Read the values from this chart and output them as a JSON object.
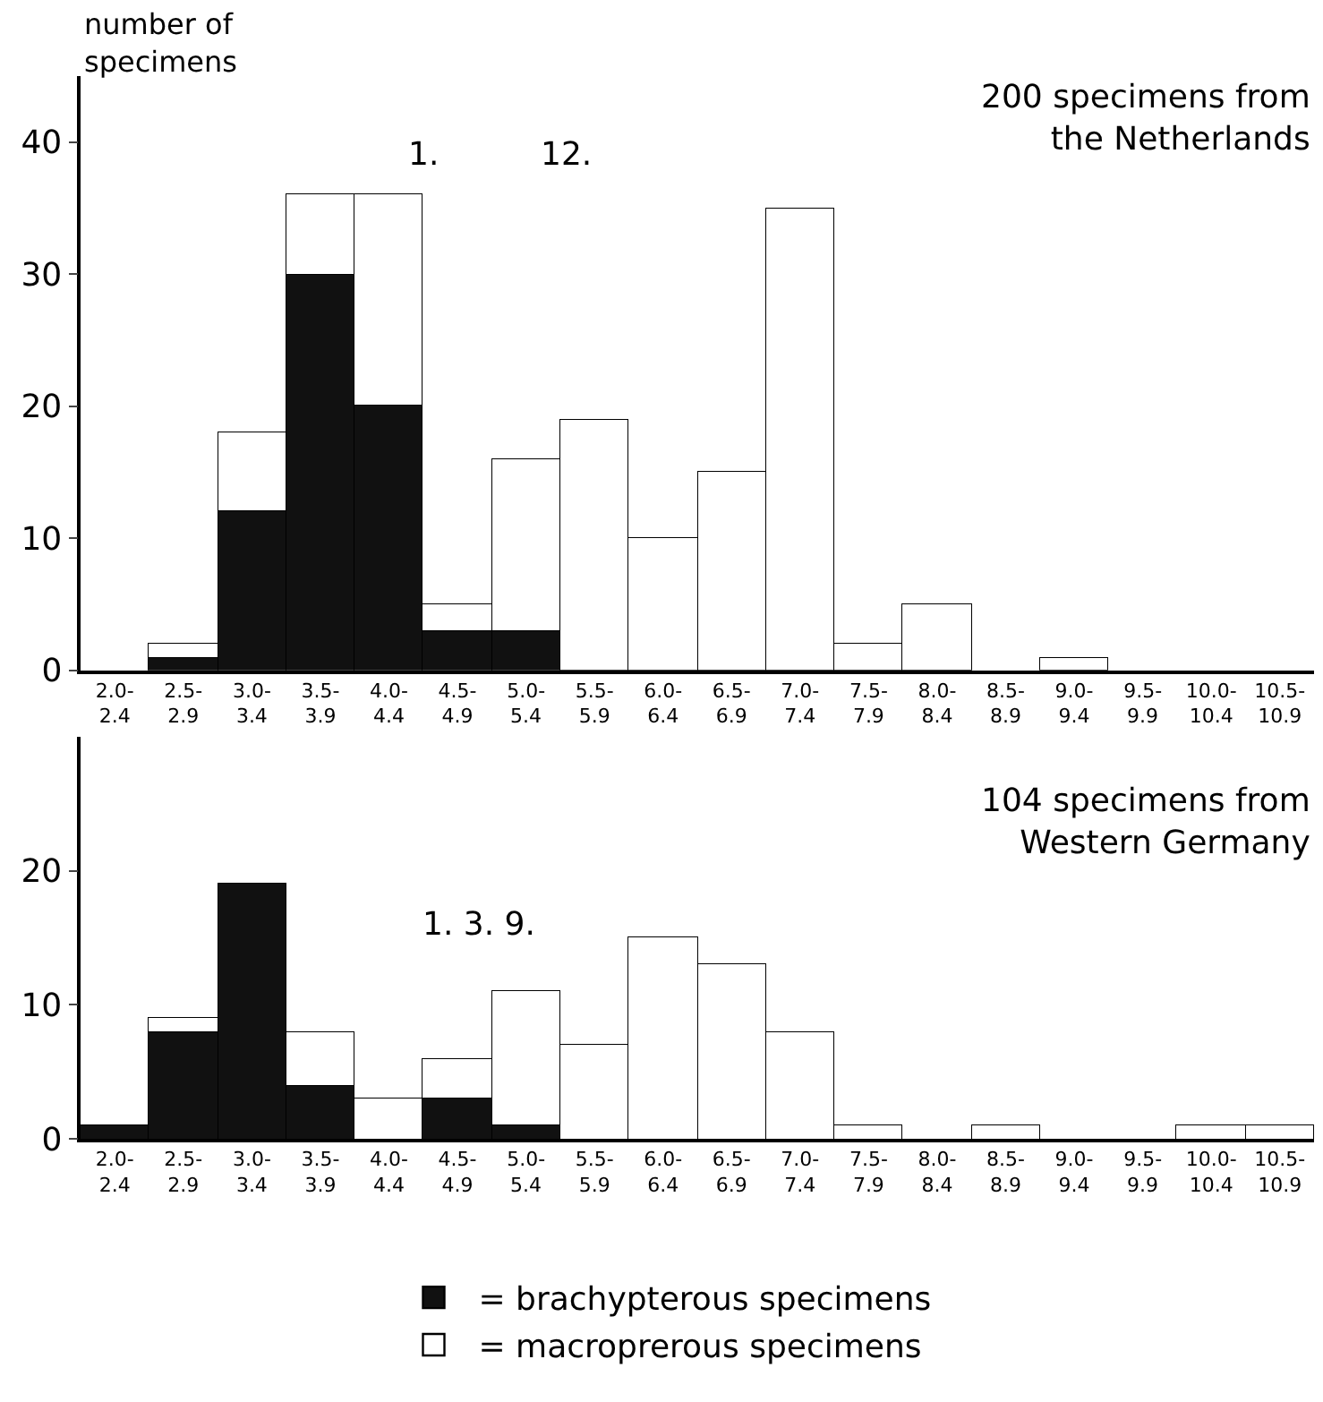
{
  "chart_data": [
    {
      "type": "bar",
      "stacked": true,
      "title": "200 specimens from\nthe Netherlands",
      "ylabel": "number of\nspecimens",
      "categories": [
        "2.0-\n2.4",
        "2.5-\n2.9",
        "3.0-\n3.4",
        "3.5-\n3.9",
        "4.0-\n4.4",
        "4.5-\n4.9",
        "5.0-\n5.4",
        "5.5-\n5.9",
        "6.0-\n6.4",
        "6.5-\n6.9",
        "7.0-\n7.4",
        "7.5-\n7.9",
        "8.0-\n8.4",
        "8.5-\n8.9",
        "9.0-\n9.4",
        "9.5-\n9.9",
        "10.0-\n10.4",
        "10.5-\n10.9"
      ],
      "series": [
        {
          "color": "#111111",
          "values": [
            0,
            1,
            12,
            30,
            20,
            3,
            3,
            0,
            0,
            0,
            0,
            0,
            0,
            0,
            0,
            0,
            0,
            0
          ]
        },
        {
          "color": "#ffffff",
          "values": [
            0,
            1,
            6,
            6,
            16,
            2,
            13,
            19,
            10,
            15,
            35,
            2,
            5,
            0,
            1,
            0,
            0,
            0
          ]
        }
      ],
      "ylim": [
        0,
        45
      ],
      "yticks": [
        0,
        10,
        20,
        30,
        40
      ],
      "annotations": [
        "1.",
        "12."
      ]
    },
    {
      "type": "bar",
      "stacked": true,
      "title": "104 specimens from\nWestern Germany",
      "categories": [
        "2.0-\n2.4",
        "2.5-\n2.9",
        "3.0-\n3.4",
        "3.5-\n3.9",
        "4.0-\n4.4",
        "4.5-\n4.9",
        "5.0-\n5.4",
        "5.5-\n5.9",
        "6.0-\n6.4",
        "6.5-\n6.9",
        "7.0-\n7.4",
        "7.5-\n7.9",
        "8.0-\n8.4",
        "8.5-\n8.9",
        "9.0-\n9.4",
        "9.5-\n9.9",
        "10.0-\n10.4",
        "10.5-\n10.9"
      ],
      "series": [
        {
          "name": "= brachypterous specimens",
          "color": "#111111",
          "values": [
            1,
            8,
            19,
            4,
            0,
            3,
            1,
            0,
            0,
            0,
            0,
            0,
            0,
            0,
            0,
            0,
            0,
            0
          ]
        },
        {
          "name": "= macroprerous specimens",
          "color": "#ffffff",
          "values": [
            0,
            1,
            0,
            4,
            3,
            3,
            10,
            7,
            15,
            13,
            8,
            1,
            0,
            1,
            0,
            0,
            1,
            1
          ]
        }
      ],
      "ylim": [
        0,
        30
      ],
      "yticks": [
        0,
        10,
        20
      ],
      "annotations": [
        "1. 3. 9."
      ],
      "legend": "bottom"
    }
  ]
}
